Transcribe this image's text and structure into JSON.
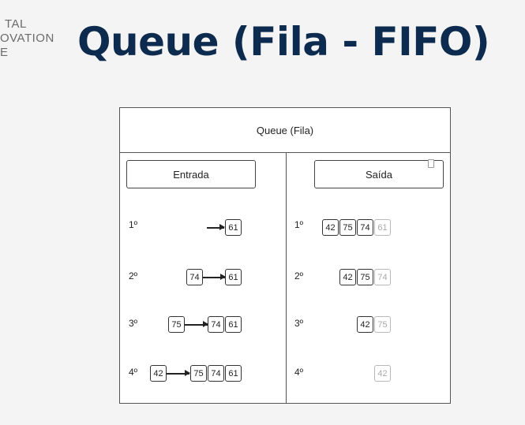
{
  "brand": {
    "line1": "TAL",
    "line2": "OVATION",
    "line3": "E"
  },
  "title": "Queue (Fila - FIFO)",
  "diagram": {
    "header": "Queue (Fila)",
    "entrada": {
      "label": "Entrada",
      "rows": [
        {
          "step": "1º",
          "incoming": [],
          "queue": [
            "61"
          ]
        },
        {
          "step": "2º",
          "incoming": [
            "74"
          ],
          "queue": [
            "61"
          ]
        },
        {
          "step": "3º",
          "incoming": [
            "75"
          ],
          "queue": [
            "74",
            "61"
          ]
        },
        {
          "step": "4º",
          "incoming": [
            "42"
          ],
          "queue": [
            "75",
            "74",
            "61"
          ]
        }
      ]
    },
    "saida": {
      "label": "Saída",
      "rows": [
        {
          "step": "1º",
          "active": [
            "42",
            "75",
            "74"
          ],
          "removed": "61"
        },
        {
          "step": "2º",
          "active": [
            "42",
            "75"
          ],
          "removed": "74"
        },
        {
          "step": "3º",
          "active": [
            "42"
          ],
          "removed": "75"
        },
        {
          "step": "4º",
          "active": [],
          "removed": "42"
        }
      ]
    }
  }
}
